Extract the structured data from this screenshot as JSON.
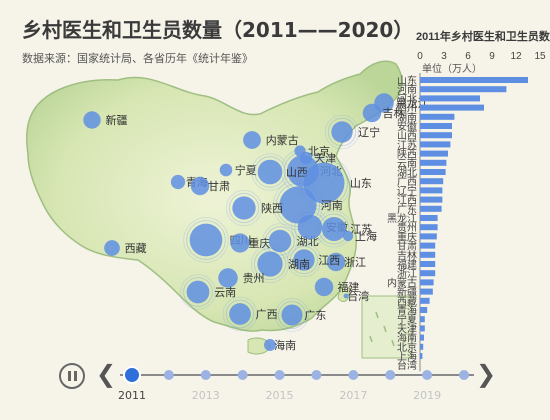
{
  "title": "乡村医生和卫生员数量（2011——2020）",
  "subtitle": "数据来源：国家统计局、各省历年《统计年鉴》",
  "colors": {
    "background": "#f6f3e9",
    "map_fill": "#d7e6b3",
    "map_border": "#9fbf82",
    "bubble": "#5f8fe2",
    "bar": "#5f8fe2",
    "timeline_dot": "#9bb2e2",
    "timeline_active": "#2f6fdb"
  },
  "chart_data": [
    {
      "type": "scatter",
      "title": "",
      "provinces": [
        {
          "name": "新疆",
          "value": 1.6
        },
        {
          "name": "西藏",
          "value": 1.2
        },
        {
          "name": "青海",
          "value": 0.9
        },
        {
          "name": "甘肃",
          "value": 1.9
        },
        {
          "name": "宁夏",
          "value": 0.6
        },
        {
          "name": "内蒙古",
          "value": 1.7
        },
        {
          "name": "黑龙江",
          "value": 2.2
        },
        {
          "name": "吉林",
          "value": 1.9
        },
        {
          "name": "辽宁",
          "value": 2.8
        },
        {
          "name": "北京",
          "value": 0.4
        },
        {
          "name": "天津",
          "value": 0.6
        },
        {
          "name": "河北",
          "value": 7.5
        },
        {
          "name": "山西",
          "value": 4.0
        },
        {
          "name": "山东",
          "value": 13.5
        },
        {
          "name": "河南",
          "value": 10.8
        },
        {
          "name": "陕西",
          "value": 3.5
        },
        {
          "name": "四川",
          "value": 8.0
        },
        {
          "name": "重庆",
          "value": 2.1
        },
        {
          "name": "湖北",
          "value": 3.2
        },
        {
          "name": "安徽",
          "value": 4.0
        },
        {
          "name": "江苏",
          "value": 3.8
        },
        {
          "name": "上海",
          "value": 0.3
        },
        {
          "name": "浙江",
          "value": 1.9
        },
        {
          "name": "江西",
          "value": 2.8
        },
        {
          "name": "湖南",
          "value": 4.3
        },
        {
          "name": "贵州",
          "value": 2.2
        },
        {
          "name": "云南",
          "value": 3.3
        },
        {
          "name": "广西",
          "value": 2.9
        },
        {
          "name": "广东",
          "value": 2.7
        },
        {
          "name": "福建",
          "value": 1.9
        },
        {
          "name": "台湾",
          "value": 0
        },
        {
          "name": "海南",
          "value": 0.5
        }
      ]
    },
    {
      "type": "bar",
      "title": "2011年乡村医生和卫生员数量",
      "xlabel": "单位（万人）",
      "xlim": [
        0,
        15
      ],
      "xticks": [
        0,
        3,
        6,
        9,
        12,
        15
      ],
      "categories": [
        "山东",
        "河南",
        "河北",
        "四川",
        "湖南",
        "安徽",
        "山西",
        "江苏",
        "陕西",
        "云南",
        "湖北",
        "广西",
        "辽宁",
        "江西",
        "广东",
        "黑龙江",
        "贵州",
        "重庆",
        "甘肃",
        "吉林",
        "福建",
        "浙江",
        "内蒙古",
        "新疆",
        "西藏",
        "青海",
        "宁夏",
        "天津",
        "海南",
        "北京",
        "上海",
        "台湾"
      ],
      "values": [
        13.5,
        10.8,
        7.5,
        8.0,
        4.3,
        4.0,
        4.0,
        3.8,
        3.5,
        3.3,
        3.2,
        2.9,
        2.8,
        2.8,
        2.7,
        2.2,
        2.2,
        2.1,
        1.9,
        1.9,
        1.9,
        1.9,
        1.7,
        1.6,
        1.2,
        0.9,
        0.6,
        0.6,
        0.5,
        0.4,
        0.3,
        0
      ]
    }
  ],
  "timeline": {
    "years": [
      "2011",
      "2012",
      "2013",
      "2014",
      "2015",
      "2016",
      "2017",
      "2018",
      "2019",
      "2020"
    ],
    "labeled": [
      "2011",
      "2013",
      "2015",
      "2017",
      "2019"
    ],
    "current": "2011"
  }
}
